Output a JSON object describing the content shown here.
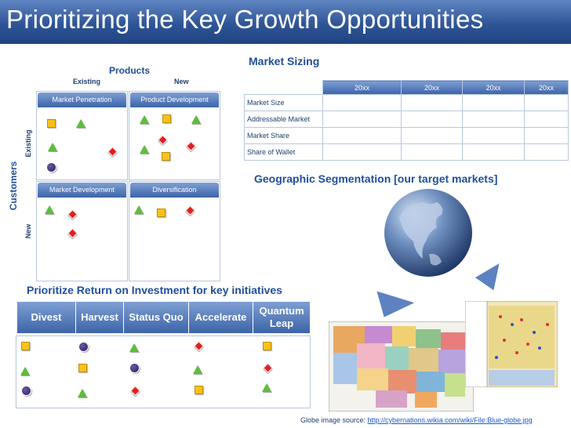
{
  "title": "Prioritizing the Key Growth Opportunities",
  "matrix": {
    "products_label": "Products",
    "customers_label": "Customers",
    "col_existing": "Existing",
    "col_new": "New",
    "row_existing": "Existing",
    "row_new": "New",
    "quadrants": [
      "Market Penetration",
      "Product Development",
      "Market Development",
      "Diversification"
    ]
  },
  "market_sizing": {
    "heading": "Market Sizing",
    "columns": [
      "20xx",
      "20xx",
      "20xx",
      "20xx"
    ],
    "rows": [
      "Market Size",
      "Addressable Market",
      "Market Share",
      "Share of Wallet"
    ]
  },
  "geo": {
    "heading": "Geographic Segmentation [our target markets]"
  },
  "roi": {
    "heading": "Prioritize Return on Investment for key initiatives",
    "columns": [
      "Divest",
      "Harvest",
      "Status Quo",
      "Accelerate",
      "Quantum Leap"
    ]
  },
  "source": {
    "prefix": "Globe image source: ",
    "link": "http://cybernations.wikia.com/wiki/File:Blue-globe.jpg"
  },
  "colors": {
    "title_bg": "#2f5597",
    "heading_text": "#1f4e9c",
    "square": "#f8c21a",
    "triangle": "#5dbd3e",
    "diamond": "#e02020",
    "circle": "#2a1d5c"
  }
}
